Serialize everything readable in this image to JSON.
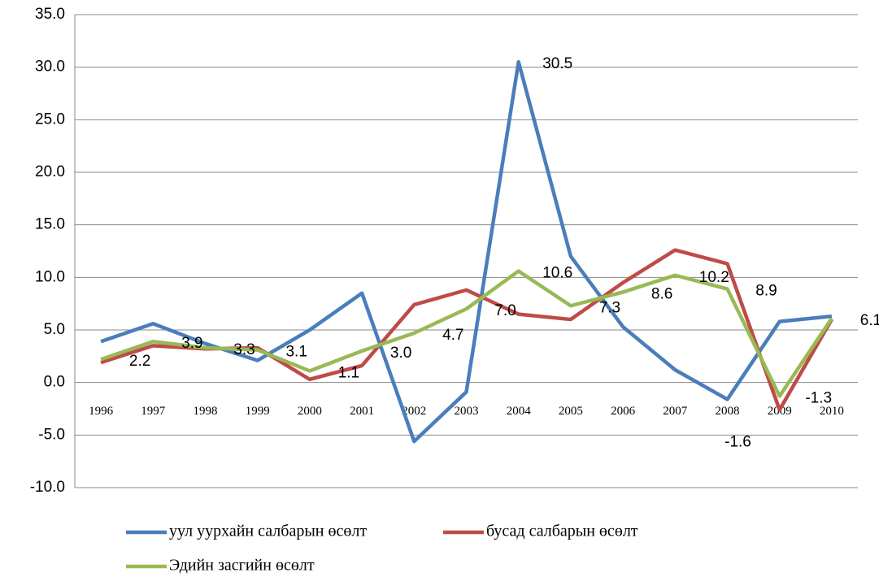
{
  "chart_data": {
    "type": "line",
    "categories": [
      "1996",
      "1997",
      "1998",
      "1999",
      "2000",
      "2001",
      "2002",
      "2003",
      "2004",
      "2005",
      "2006",
      "2007",
      "2008",
      "2009",
      "2010"
    ],
    "series": [
      {
        "name": "уул уурхайн салбарын өсөлт",
        "color": "#4a7ebb",
        "values": [
          3.9,
          5.6,
          3.7,
          2.1,
          5.0,
          8.5,
          -5.6,
          -0.9,
          30.5,
          12.0,
          5.3,
          1.2,
          -1.6,
          5.8,
          6.3
        ],
        "value_labels": [
          null,
          null,
          null,
          null,
          null,
          null,
          null,
          null,
          "30.5",
          null,
          null,
          null,
          "-1.6",
          null,
          null
        ]
      },
      {
        "name": "бусад салбарын өсөлт",
        "color": "#be4b48",
        "values": [
          1.9,
          3.5,
          3.2,
          3.3,
          0.3,
          1.6,
          7.4,
          8.8,
          6.5,
          6.0,
          9.5,
          12.6,
          11.3,
          -2.6,
          6.0
        ]
      },
      {
        "name": "Эдийн засгийн өсөлт",
        "color": "#98b954",
        "values": [
          2.2,
          3.9,
          3.3,
          3.1,
          1.1,
          3.0,
          4.7,
          7.0,
          10.6,
          7.3,
          8.6,
          10.2,
          8.9,
          -1.3,
          6.1
        ],
        "value_labels": [
          "2.2",
          "3.9",
          "3.3",
          "3.1",
          "1.1",
          "3.0",
          "4.7",
          "7.0",
          "10.6",
          "7.3",
          "8.6",
          "10.2",
          "8.9",
          "-1.3",
          "6.1"
        ]
      }
    ],
    "ylim": [
      -10,
      35
    ],
    "yticks": [
      {
        "value": -10,
        "label": "-10.0"
      },
      {
        "value": -5,
        "label": "-5.0"
      },
      {
        "value": 0,
        "label": "0.0"
      },
      {
        "value": 5,
        "label": "5.0"
      },
      {
        "value": 10,
        "label": "10.0"
      },
      {
        "value": 15,
        "label": "15.0"
      },
      {
        "value": 20,
        "label": "20.0"
      },
      {
        "value": 25,
        "label": "25.0"
      },
      {
        "value": 30,
        "label": "30.0"
      },
      {
        "value": 35,
        "label": "35.0"
      }
    ],
    "grid": true,
    "legend": "bottom"
  }
}
